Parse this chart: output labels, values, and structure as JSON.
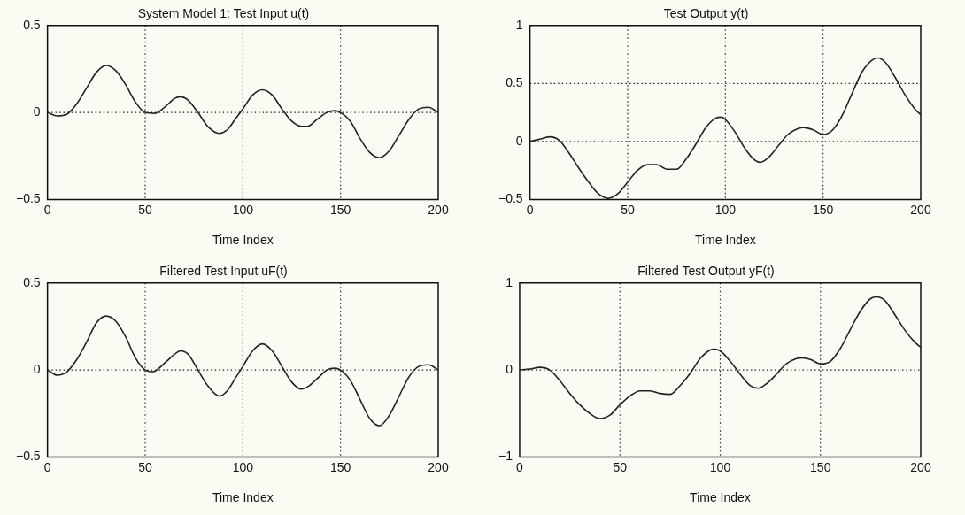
{
  "chart_data": [
    {
      "type": "line",
      "title": "System Model 1: Test Input u(t)",
      "xlabel": "Time Index",
      "color": "#222222",
      "marker": "none",
      "grid": true,
      "x": [
        0,
        5,
        10,
        15,
        20,
        25,
        30,
        35,
        40,
        45,
        50,
        55,
        60,
        65,
        68,
        72,
        77,
        82,
        88,
        92,
        96,
        100,
        105,
        110,
        115,
        120,
        125,
        130,
        133,
        138,
        143,
        147,
        150,
        155,
        160,
        165,
        170,
        175,
        180,
        185,
        190,
        195,
        200
      ],
      "values": [
        0,
        -0.02,
        -0.01,
        0.05,
        0.14,
        0.23,
        0.27,
        0.24,
        0.16,
        0.06,
        0.0,
        -0.005,
        0.03,
        0.08,
        0.09,
        0.07,
        0.0,
        -0.08,
        -0.12,
        -0.1,
        -0.04,
        0.02,
        0.1,
        0.13,
        0.1,
        0.02,
        -0.05,
        -0.08,
        -0.08,
        -0.04,
        0.0,
        0.01,
        0.0,
        -0.05,
        -0.15,
        -0.23,
        -0.26,
        -0.22,
        -0.13,
        -0.04,
        0.02,
        0.03,
        0.0
      ],
      "xlim": [
        0,
        200
      ],
      "xticks": [
        0,
        50,
        100,
        150,
        200
      ],
      "ylim": [
        -0.5,
        0.5
      ],
      "yticks": [
        -0.5,
        0,
        0.5
      ]
    },
    {
      "type": "line",
      "title": "Test Output y(t)",
      "xlabel": "Time Index",
      "color": "#222222",
      "marker": "none",
      "grid": true,
      "x": [
        0,
        5,
        10,
        15,
        20,
        25,
        30,
        35,
        40,
        45,
        50,
        55,
        60,
        65,
        70,
        75,
        80,
        85,
        90,
        95,
        98,
        100,
        105,
        110,
        115,
        118,
        122,
        127,
        132,
        137,
        140,
        145,
        150,
        155,
        160,
        165,
        170,
        175,
        178,
        182,
        187,
        192,
        197,
        200
      ],
      "values": [
        0,
        0.02,
        0.04,
        0.01,
        -0.1,
        -0.23,
        -0.35,
        -0.45,
        -0.49,
        -0.45,
        -0.35,
        -0.25,
        -0.2,
        -0.2,
        -0.24,
        -0.24,
        -0.15,
        -0.02,
        0.12,
        0.2,
        0.21,
        0.19,
        0.08,
        -0.06,
        -0.16,
        -0.18,
        -0.14,
        -0.04,
        0.06,
        0.11,
        0.12,
        0.1,
        0.06,
        0.1,
        0.23,
        0.42,
        0.6,
        0.7,
        0.72,
        0.68,
        0.55,
        0.4,
        0.28,
        0.23
      ],
      "xlim": [
        0,
        200
      ],
      "xticks": [
        0,
        50,
        100,
        150,
        200
      ],
      "ylim": [
        -0.5,
        1
      ],
      "yticks": [
        -0.5,
        0,
        0.5,
        1
      ]
    },
    {
      "type": "line",
      "title": "Filtered Test Input uF(t)",
      "xlabel": "Time Index",
      "color": "#222222",
      "marker": "none",
      "grid": true,
      "x": [
        0,
        5,
        10,
        15,
        20,
        25,
        30,
        35,
        40,
        45,
        50,
        54,
        60,
        65,
        68,
        72,
        77,
        82,
        88,
        92,
        96,
        100,
        105,
        110,
        115,
        120,
        125,
        130,
        134,
        139,
        143,
        147,
        150,
        155,
        160,
        165,
        170,
        175,
        180,
        185,
        190,
        195,
        200
      ],
      "values": [
        0,
        -0.03,
        -0.01,
        0.06,
        0.16,
        0.27,
        0.31,
        0.28,
        0.19,
        0.07,
        0.0,
        -0.01,
        0.04,
        0.09,
        0.11,
        0.09,
        0.0,
        -0.09,
        -0.15,
        -0.12,
        -0.05,
        0.02,
        0.11,
        0.15,
        0.11,
        0.02,
        -0.07,
        -0.11,
        -0.09,
        -0.04,
        0.0,
        0.01,
        0.0,
        -0.06,
        -0.17,
        -0.28,
        -0.32,
        -0.26,
        -0.15,
        -0.04,
        0.02,
        0.03,
        0.0
      ],
      "xlim": [
        0,
        200
      ],
      "xticks": [
        0,
        50,
        100,
        150,
        200
      ],
      "ylim": [
        -0.5,
        0.5
      ],
      "yticks": [
        -0.5,
        0,
        0.5
      ]
    },
    {
      "type": "line",
      "title": "Filtered Test Output yF(t)",
      "xlabel": "Time Index",
      "color": "#222222",
      "marker": "none",
      "grid": true,
      "x": [
        0,
        5,
        10,
        15,
        20,
        25,
        30,
        35,
        40,
        45,
        50,
        55,
        60,
        65,
        70,
        75,
        80,
        85,
        90,
        95,
        97,
        100,
        105,
        110,
        115,
        119,
        123,
        128,
        133,
        138,
        141,
        145,
        150,
        155,
        160,
        165,
        170,
        175,
        178,
        182,
        187,
        192,
        197,
        200
      ],
      "values": [
        0,
        0.01,
        0.03,
        0.0,
        -0.12,
        -0.27,
        -0.4,
        -0.5,
        -0.56,
        -0.52,
        -0.4,
        -0.3,
        -0.24,
        -0.24,
        -0.27,
        -0.28,
        -0.18,
        -0.04,
        0.13,
        0.23,
        0.24,
        0.22,
        0.1,
        -0.05,
        -0.18,
        -0.21,
        -0.16,
        -0.05,
        0.07,
        0.13,
        0.14,
        0.12,
        0.07,
        0.1,
        0.25,
        0.47,
        0.68,
        0.82,
        0.84,
        0.8,
        0.64,
        0.46,
        0.32,
        0.26
      ],
      "xlim": [
        0,
        200
      ],
      "xticks": [
        0,
        50,
        100,
        150,
        200
      ],
      "ylim": [
        -1,
        1
      ],
      "yticks": [
        -1,
        0,
        1
      ]
    }
  ]
}
